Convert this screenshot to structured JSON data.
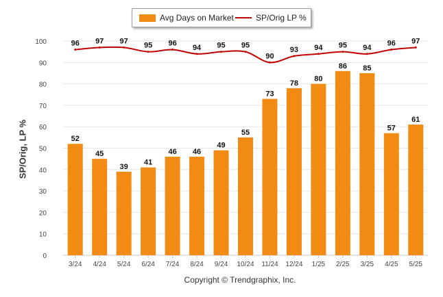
{
  "legend": {
    "bar_label": "Avg Days on Market",
    "line_label": "SP/Orig LP %"
  },
  "copyright": "Copyright © Trendgraphix, Inc.",
  "colors": {
    "bar": "#f18b13",
    "line": "#c00000",
    "grid": "#e6e6e6"
  },
  "chart_data": {
    "type": "bar",
    "categories": [
      "3/24",
      "4/24",
      "5/24",
      "6/24",
      "7/24",
      "8/24",
      "9/24",
      "10/24",
      "11/24",
      "12/24",
      "1/25",
      "2/25",
      "3/25",
      "4/25",
      "5/25"
    ],
    "series": [
      {
        "name": "Avg Days on Market",
        "type": "bar",
        "values": [
          52,
          45,
          39,
          41,
          46,
          46,
          49,
          55,
          73,
          78,
          80,
          86,
          85,
          57,
          61
        ]
      },
      {
        "name": "SP/Orig LP %",
        "type": "line",
        "values": [
          96,
          97,
          97,
          95,
          96,
          94,
          95,
          95,
          90,
          93,
          94,
          95,
          94,
          96,
          97
        ]
      }
    ],
    "ylabel": "SP/Orig, LP %",
    "xlabel": "",
    "ylim": [
      0,
      100
    ],
    "yticks": [
      0,
      10,
      20,
      30,
      40,
      50,
      60,
      70,
      80,
      90,
      100
    ],
    "grid": true,
    "legend_position": "top"
  }
}
